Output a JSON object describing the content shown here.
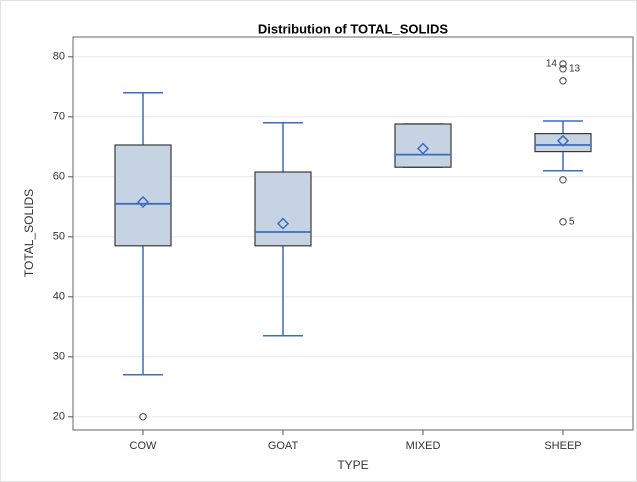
{
  "chart_data": {
    "type": "box",
    "title": "Distribution of TOTAL_SOLIDS",
    "x_label": "TYPE",
    "y_label": "TOTAL_SOLIDS",
    "categories": [
      "COW",
      "GOAT",
      "MIXED",
      "SHEEP"
    ],
    "boxes": [
      {
        "min": 27,
        "q1": 48.5,
        "median": 55.5,
        "q3": 65.3,
        "max": 74,
        "mean": 55.8,
        "outliers": [
          {
            "value": 20
          }
        ]
      },
      {
        "min": 33.5,
        "q1": 48.5,
        "median": 50.8,
        "q3": 60.8,
        "max": 69,
        "mean": 52.2,
        "outliers": []
      },
      {
        "min": 61.6,
        "q1": 61.6,
        "median": 63.7,
        "q3": 68.8,
        "max": 68.8,
        "mean": 64.7,
        "outliers": []
      },
      {
        "min": 61,
        "q1": 64.2,
        "median": 65.3,
        "q3": 67.2,
        "max": 69.3,
        "mean": 66,
        "outliers": [
          {
            "value": 59.5
          },
          {
            "value": 52.5,
            "label": "5"
          },
          {
            "value": 76
          },
          {
            "value": 78,
            "label": "13"
          },
          {
            "value": 78.8,
            "label": "14"
          }
        ]
      }
    ],
    "box_fill": "#c6d3e3",
    "box_edge": "#3a3a3a",
    "line_color": "#3c6cc0",
    "ylim": [
      17.8,
      83.3
    ],
    "yticks": [
      20,
      30,
      40,
      50,
      60,
      70,
      80
    ],
    "grid": true
  }
}
